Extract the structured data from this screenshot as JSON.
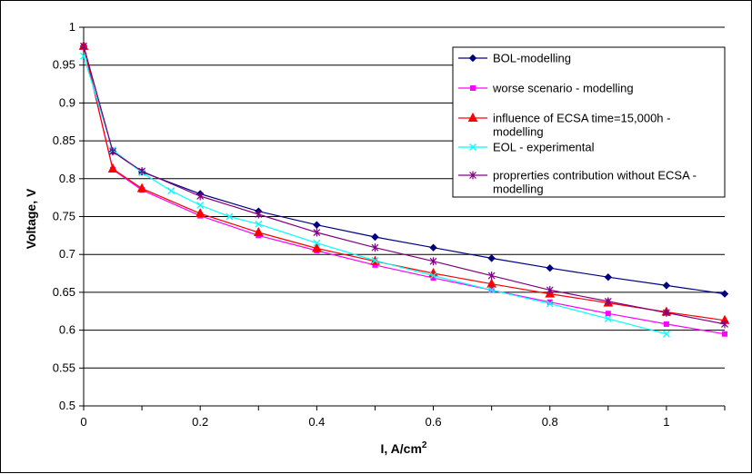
{
  "chart_data": {
    "type": "line",
    "title": "",
    "xlabel": "I, A/cm",
    "xlabel_superscript": "2",
    "ylabel": "Voltage, V",
    "xlim": [
      0,
      1.1
    ],
    "ylim": [
      0.5,
      1.0
    ],
    "x_ticks": [
      "0",
      "0.2",
      "0.4",
      "0.6",
      "0.8",
      "1"
    ],
    "y_ticks": [
      "0.5",
      "0.55",
      "0.6",
      "0.65",
      "0.7",
      "0.75",
      "0.8",
      "0.85",
      "0.9",
      "0.95",
      "1"
    ],
    "grid": "horizontal",
    "legend_position": "top-right",
    "series": [
      {
        "name": "BOL-modelling",
        "color": "#000080",
        "marker": "diamond",
        "x": [
          0,
          0.05,
          0.1,
          0.2,
          0.3,
          0.4,
          0.5,
          0.6,
          0.7,
          0.8,
          0.9,
          1.0,
          1.1
        ],
        "y": [
          0.975,
          0.836,
          0.809,
          0.78,
          0.757,
          0.739,
          0.723,
          0.709,
          0.695,
          0.682,
          0.67,
          0.659,
          0.648
        ]
      },
      {
        "name": "worse scenario - modelling",
        "color": "#ff00ff",
        "marker": "square",
        "x": [
          0,
          0.05,
          0.1,
          0.2,
          0.3,
          0.4,
          0.5,
          0.6,
          0.7,
          0.8,
          0.9,
          1.0,
          1.1
        ],
        "y": [
          0.975,
          0.812,
          0.785,
          0.751,
          0.725,
          0.705,
          0.686,
          0.669,
          0.653,
          0.637,
          0.622,
          0.608,
          0.595
        ]
      },
      {
        "name": "influence of ECSA time=15,000h - modelling",
        "color": "#ff0000",
        "marker": "triangle",
        "x": [
          0,
          0.05,
          0.1,
          0.2,
          0.3,
          0.4,
          0.5,
          0.6,
          0.7,
          0.8,
          0.9,
          1.0,
          1.1
        ],
        "y": [
          0.975,
          0.813,
          0.787,
          0.754,
          0.729,
          0.708,
          0.691,
          0.675,
          0.661,
          0.648,
          0.636,
          0.624,
          0.613
        ]
      },
      {
        "name": "EOL - experimental",
        "color": "#00ffff",
        "marker": "x",
        "x": [
          0,
          0.05,
          0.1,
          0.15,
          0.2,
          0.25,
          0.3,
          0.4,
          0.5,
          0.6,
          0.7,
          0.8,
          0.9,
          1.0
        ],
        "y": [
          0.962,
          0.838,
          0.808,
          0.784,
          0.765,
          0.75,
          0.74,
          0.715,
          0.692,
          0.672,
          0.653,
          0.635,
          0.615,
          0.595
        ]
      },
      {
        "name": "proprerties contribution without ECSA - modelling",
        "color": "#800080",
        "marker": "star",
        "x": [
          0,
          0.05,
          0.1,
          0.2,
          0.3,
          0.4,
          0.5,
          0.6,
          0.7,
          0.8,
          0.9,
          1.0,
          1.1
        ],
        "y": [
          0.975,
          0.836,
          0.81,
          0.777,
          0.753,
          0.729,
          0.709,
          0.691,
          0.672,
          0.653,
          0.638,
          0.623,
          0.608
        ]
      }
    ]
  }
}
